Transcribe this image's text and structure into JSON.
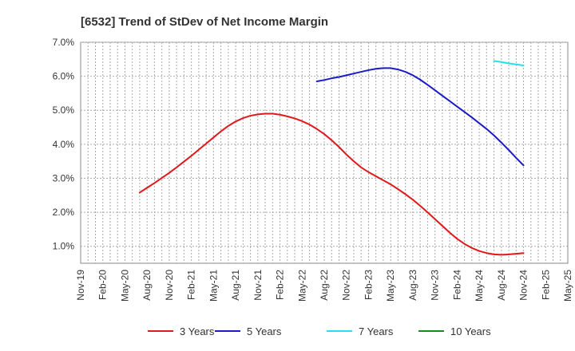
{
  "chart_data": {
    "type": "line",
    "title": "[6532]  Trend of StDev of Net Income Margin",
    "xlabel": "",
    "ylabel": "",
    "ylim": [
      0.5,
      7.0
    ],
    "yticks": [
      1.0,
      2.0,
      3.0,
      4.0,
      5.0,
      6.0,
      7.0
    ],
    "ytick_labels": [
      "1.0%",
      "2.0%",
      "3.0%",
      "4.0%",
      "5.0%",
      "6.0%",
      "7.0%"
    ],
    "xticks": [
      "Nov-19",
      "Feb-20",
      "May-20",
      "Aug-20",
      "Nov-20",
      "Feb-21",
      "May-21",
      "Aug-21",
      "Nov-21",
      "Feb-22",
      "May-22",
      "Aug-22",
      "Nov-22",
      "Feb-23",
      "May-23",
      "Aug-23",
      "Nov-23",
      "Feb-24",
      "May-24",
      "Aug-24",
      "Nov-24",
      "Feb-25",
      "May-25"
    ],
    "grid": true,
    "legend_position": "bottom",
    "series": [
      {
        "name": "3 Years",
        "color": "#e0191b",
        "x": [
          "Jul-20",
          "Aug-20",
          "Sep-20",
          "Oct-20",
          "Nov-20",
          "Dec-20",
          "Jan-21",
          "Feb-21",
          "Mar-21",
          "Apr-21",
          "May-21",
          "Jun-21",
          "Jul-21",
          "Aug-21",
          "Sep-21",
          "Oct-21",
          "Nov-21",
          "Dec-21",
          "Jan-22",
          "Feb-22",
          "Mar-22",
          "Apr-22",
          "May-22",
          "Jun-22",
          "Jul-22",
          "Aug-22",
          "Sep-22",
          "Oct-22",
          "Nov-22",
          "Dec-22",
          "Jan-23",
          "Feb-23",
          "Mar-23",
          "Apr-23",
          "May-23",
          "Jun-23",
          "Jul-23",
          "Aug-23",
          "Sep-23",
          "Oct-23",
          "Nov-23",
          "Dec-23",
          "Jan-24",
          "Feb-24",
          "Mar-24",
          "Apr-24",
          "May-24",
          "Jun-24",
          "Jul-24",
          "Aug-24",
          "Sep-24",
          "Oct-24",
          "Nov-24"
        ],
        "y": [
          2.58,
          2.72,
          2.86,
          3.01,
          3.16,
          3.32,
          3.49,
          3.66,
          3.84,
          4.02,
          4.2,
          4.38,
          4.54,
          4.67,
          4.77,
          4.84,
          4.88,
          4.9,
          4.9,
          4.87,
          4.82,
          4.76,
          4.68,
          4.58,
          4.45,
          4.3,
          4.12,
          3.92,
          3.7,
          3.5,
          3.32,
          3.18,
          3.06,
          2.94,
          2.82,
          2.68,
          2.53,
          2.37,
          2.19,
          2.0,
          1.8,
          1.6,
          1.4,
          1.22,
          1.07,
          0.95,
          0.86,
          0.8,
          0.76,
          0.75,
          0.76,
          0.78,
          0.8
        ]
      },
      {
        "name": "5 Years",
        "color": "#1c1cc7",
        "x": [
          "Jul-22",
          "Aug-22",
          "Sep-22",
          "Oct-22",
          "Nov-22",
          "Dec-22",
          "Jan-23",
          "Feb-23",
          "Mar-23",
          "Apr-23",
          "May-23",
          "Jun-23",
          "Jul-23",
          "Aug-23",
          "Sep-23",
          "Oct-23",
          "Nov-23",
          "Dec-23",
          "Jan-24",
          "Feb-24",
          "Mar-24",
          "Apr-24",
          "May-24",
          "Jun-24",
          "Jul-24",
          "Aug-24",
          "Sep-24",
          "Oct-24",
          "Nov-24"
        ],
        "y": [
          5.85,
          5.89,
          5.94,
          5.98,
          6.03,
          6.08,
          6.13,
          6.18,
          6.22,
          6.24,
          6.24,
          6.2,
          6.13,
          6.03,
          5.9,
          5.75,
          5.59,
          5.43,
          5.27,
          5.11,
          4.95,
          4.79,
          4.62,
          4.45,
          4.26,
          4.05,
          3.83,
          3.6,
          3.38
        ]
      },
      {
        "name": "7 Years",
        "color": "#22e0ee",
        "x": [
          "Jul-24",
          "Aug-24",
          "Sep-24",
          "Oct-24",
          "Nov-24"
        ],
        "y": [
          6.45,
          6.42,
          6.38,
          6.35,
          6.32
        ]
      },
      {
        "name": "10 Years",
        "color": "#1a8c1a",
        "x": [],
        "y": []
      }
    ]
  }
}
